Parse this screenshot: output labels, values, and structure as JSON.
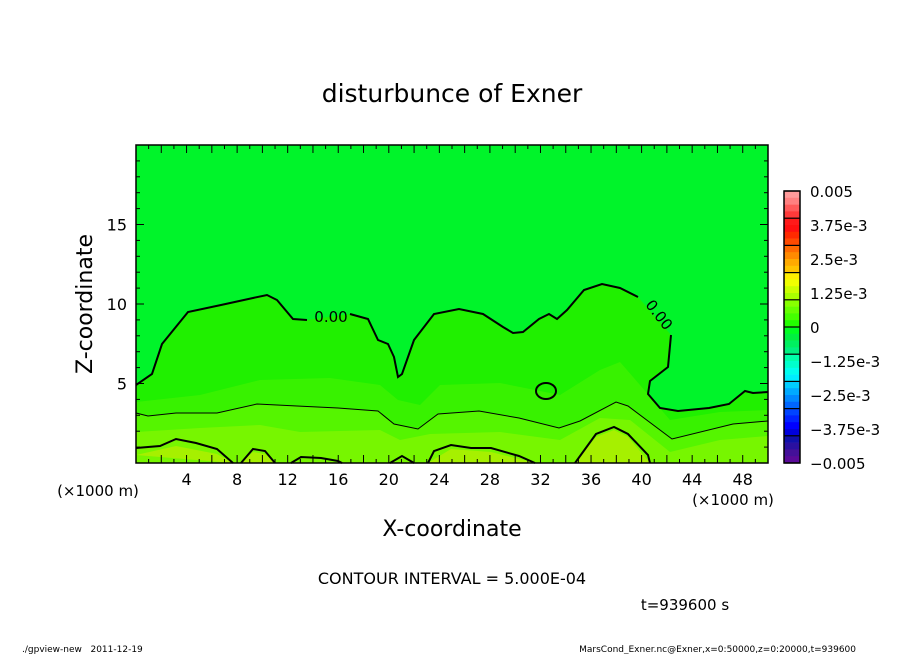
{
  "chart_data": {
    "type": "contour",
    "title": "disturbunce of Exner",
    "xlabel": "X-coordinate",
    "ylabel": "Z-coordinate",
    "x_unit": "(×1000 m)",
    "x_unit_right": "(×1000 m)",
    "xlim": [
      0,
      50
    ],
    "ylim": [
      0,
      20
    ],
    "x_ticks": [
      "4",
      "8",
      "12",
      "16",
      "20",
      "24",
      "28",
      "32",
      "36",
      "40",
      "44",
      "48"
    ],
    "x_tick_values": [
      4,
      8,
      12,
      16,
      20,
      24,
      28,
      32,
      36,
      40,
      44,
      48
    ],
    "y_ticks": [
      "5",
      "10",
      "15"
    ],
    "y_tick_values": [
      5,
      10,
      15
    ],
    "contour_interval": "CONTOUR INTERVAL = 5.000E-04",
    "contour_labels": [
      "0.00",
      "0.00"
    ],
    "time_label": "t=939600 s",
    "colorbar": {
      "range": [
        -0.005,
        0.005
      ],
      "labels": [
        "0.005",
        "3.75e-3",
        "2.5e-3",
        "1.25e-3",
        "0",
        "-1.25e-3",
        "-2.5e-3",
        "-3.75e-3",
        "-0.005"
      ],
      "label_values": [
        0.005,
        0.00375,
        0.0025,
        0.00125,
        0,
        -0.00125,
        -0.0025,
        -0.00375,
        -0.005
      ],
      "colors_top_to_bottom": [
        "#ff9a9a",
        "#ff8080",
        "#ff5a5a",
        "#ff3a3a",
        "#ff1a1a",
        "#ff1010",
        "#ff2a00",
        "#ff4a00",
        "#ff6a00",
        "#ff8a00",
        "#ffaa00",
        "#ffc400",
        "#ffee00",
        "#f0ff00",
        "#ccff00",
        "#aaff00",
        "#88ff00",
        "#66ff00",
        "#44ff00",
        "#22ff00",
        "#00ff22",
        "#00f040",
        "#00f060",
        "#00f080",
        "#00ffaa",
        "#00ffcc",
        "#00ffee",
        "#00eeff",
        "#00ccff",
        "#00aaff",
        "#0088ff",
        "#0066ff",
        "#0044ff",
        "#0022ff",
        "#0000ff",
        "#0000dd",
        "#1010aa",
        "#2a10a0",
        "#441099",
        "#5a0a99"
      ]
    },
    "fill_colors": {
      "top": "#00f42a",
      "band1": "#20f000",
      "band2": "#38f200",
      "band3": "#55f500",
      "band4": "#77f600",
      "band5": "#a6f000"
    }
  },
  "footer": {
    "left": "./gpview-new   2011-12-19",
    "right": "MarsCond_Exner.nc@Exner,x=0:50000,z=0:20000,t=939600"
  }
}
